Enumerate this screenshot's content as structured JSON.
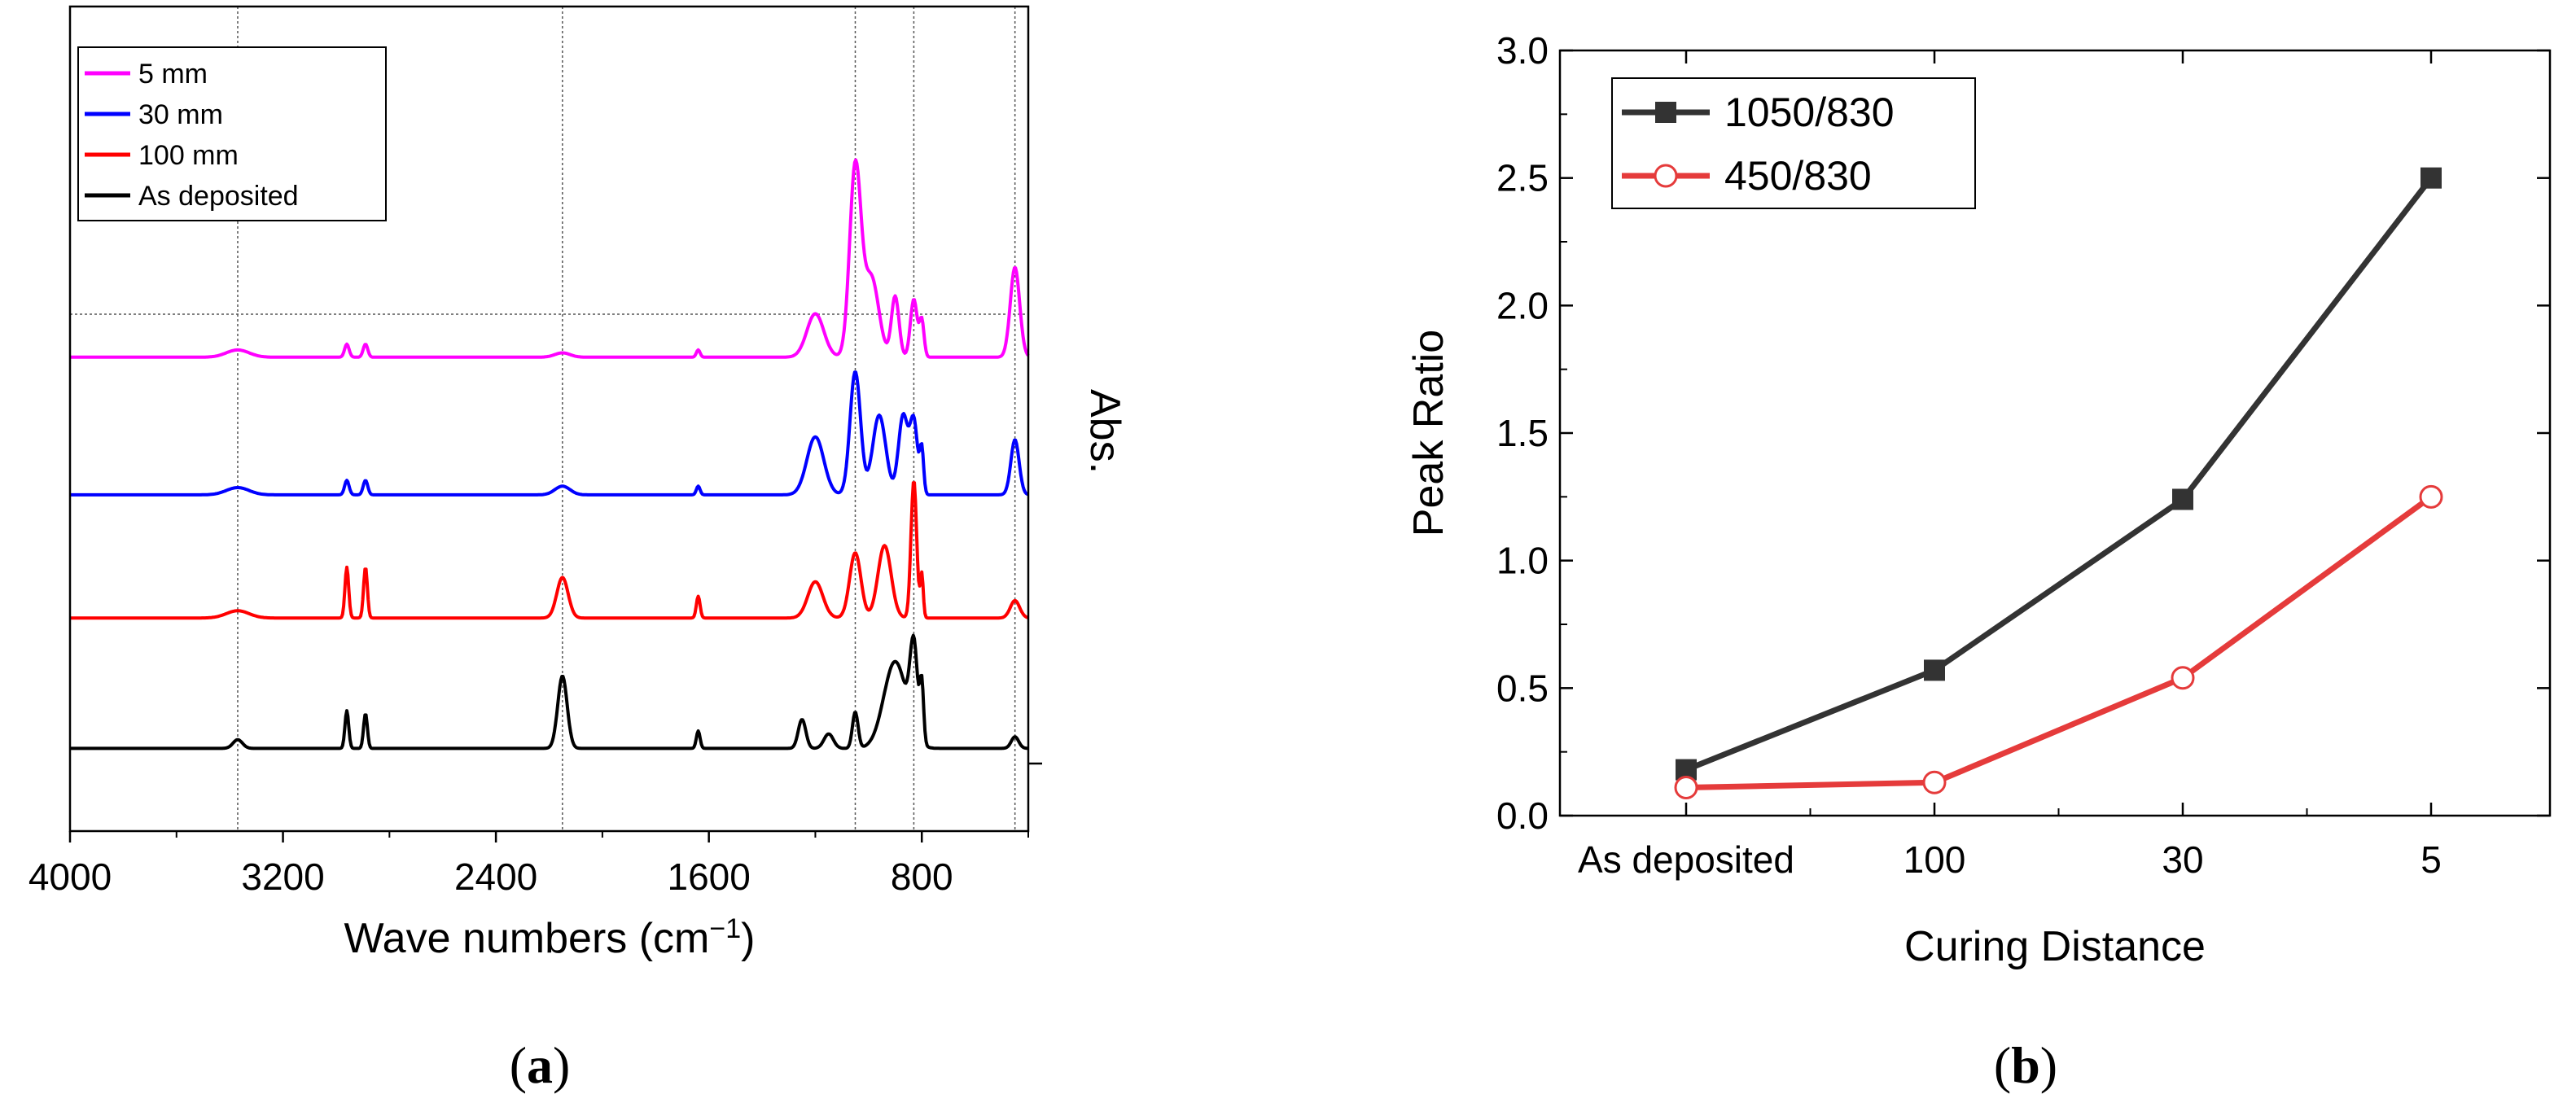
{
  "chart_data": [
    {
      "type": "line",
      "panel": "a",
      "panel_label": {
        "open": "(",
        "letter": "a",
        "close": ")"
      },
      "xlabel": "Wave numbers (cm",
      "xlabel_sup": "−1",
      "xlabel_close": ")",
      "ylabel": "Abs.",
      "xlim": [
        4000,
        400
      ],
      "xticks": [
        4000,
        3200,
        2400,
        1600,
        800
      ],
      "xtick_labels": [
        "4000",
        "3200",
        "2400",
        "1600",
        "800"
      ],
      "reference_lines": [
        3370,
        2150,
        1050,
        830,
        450
      ],
      "legend": {
        "position": "top-left",
        "entries": [
          "5 mm",
          "30 mm",
          "100 mm",
          "As deposited"
        ]
      },
      "series": [
        {
          "name": "5 mm",
          "color": "#ff00ff",
          "baseline": 2.9,
          "peaks": [
            [
              3370,
              0.05,
              60
            ],
            [
              2960,
              0.09,
              12
            ],
            [
              2890,
              0.09,
              12
            ],
            [
              2150,
              0.03,
              40
            ],
            [
              1640,
              0.05,
              10
            ],
            [
              1200,
              0.3,
              45
            ],
            [
              1050,
              1.3,
              30
            ],
            [
              990,
              0.55,
              40
            ],
            [
              900,
              0.42,
              20
            ],
            [
              830,
              0.4,
              18
            ],
            [
              800,
              0.25,
              12
            ],
            [
              450,
              0.62,
              25
            ]
          ]
        },
        {
          "name": "30 mm",
          "color": "#0000ff",
          "baseline": 1.95,
          "peaks": [
            [
              3370,
              0.05,
              60
            ],
            [
              2960,
              0.1,
              12
            ],
            [
              2890,
              0.1,
              12
            ],
            [
              2150,
              0.06,
              40
            ],
            [
              1640,
              0.06,
              10
            ],
            [
              1200,
              0.4,
              45
            ],
            [
              1050,
              0.85,
              28
            ],
            [
              960,
              0.55,
              35
            ],
            [
              870,
              0.55,
              25
            ],
            [
              830,
              0.5,
              20
            ],
            [
              800,
              0.3,
              10
            ],
            [
              450,
              0.38,
              22
            ]
          ]
        },
        {
          "name": "100 mm",
          "color": "#ff0000",
          "baseline": 1.1,
          "peaks": [
            [
              3370,
              0.05,
              60
            ],
            [
              2960,
              0.35,
              10
            ],
            [
              2890,
              0.35,
              10
            ],
            [
              2150,
              0.28,
              30
            ],
            [
              1640,
              0.15,
              10
            ],
            [
              1200,
              0.25,
              40
            ],
            [
              1050,
              0.45,
              30
            ],
            [
              940,
              0.5,
              35
            ],
            [
              830,
              0.95,
              15
            ],
            [
              800,
              0.3,
              8
            ],
            [
              450,
              0.12,
              25
            ]
          ]
        },
        {
          "name": "As deposited",
          "color": "#000000",
          "baseline": 0.2,
          "peaks": [
            [
              3370,
              0.06,
              25
            ],
            [
              2960,
              0.26,
              10
            ],
            [
              2890,
              0.24,
              10
            ],
            [
              2150,
              0.5,
              25
            ],
            [
              1640,
              0.12,
              10
            ],
            [
              1250,
              0.2,
              20
            ],
            [
              1150,
              0.1,
              25
            ],
            [
              1050,
              0.25,
              15
            ],
            [
              900,
              0.6,
              60
            ],
            [
              830,
              0.62,
              20
            ],
            [
              800,
              0.4,
              10
            ],
            [
              450,
              0.08,
              20
            ]
          ]
        }
      ]
    },
    {
      "type": "line",
      "panel": "b",
      "panel_label": {
        "open": "(",
        "letter": "b",
        "close": ")"
      },
      "xlabel": "Curing Distance",
      "ylabel": "Peak Ratio",
      "categories": [
        "As deposited",
        "100",
        "30",
        "5"
      ],
      "ylim": [
        0,
        3.0
      ],
      "yticks": [
        0.0,
        0.5,
        1.0,
        1.5,
        2.0,
        2.5,
        3.0
      ],
      "ytick_labels": [
        "0.0",
        "0.5",
        "1.0",
        "1.5",
        "2.0",
        "2.5",
        "3.0"
      ],
      "legend": {
        "position": "top-left"
      },
      "series": [
        {
          "name": "1050/830",
          "color": "#333333",
          "marker": "filled-square",
          "values": [
            0.18,
            0.57,
            1.24,
            2.5
          ]
        },
        {
          "name": "450/830",
          "color": "#e53b3b",
          "marker": "open-circle",
          "values": [
            0.11,
            0.13,
            0.54,
            1.25
          ]
        }
      ]
    }
  ]
}
